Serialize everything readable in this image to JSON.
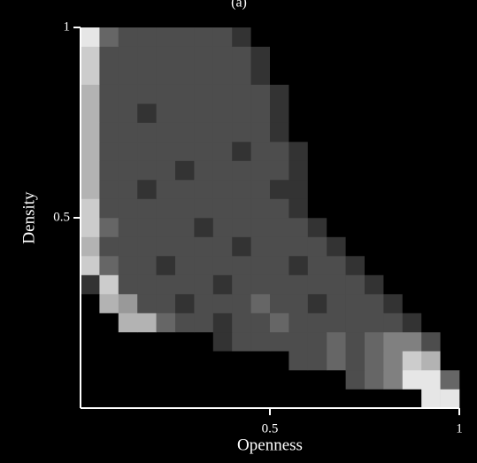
{
  "chart_data": {
    "type": "heatmap",
    "title": "(a)",
    "xlabel": "Openness",
    "ylabel": "Density",
    "xlim": [
      0,
      1
    ],
    "ylim": [
      0,
      1
    ],
    "xticks": [
      0.5,
      1
    ],
    "yticks": [
      0.5,
      1
    ],
    "xbins": [
      0,
      0.05,
      0.1,
      0.15,
      0.2,
      0.25,
      0.3,
      0.35,
      0.4,
      0.45,
      0.5,
      0.55,
      0.6,
      0.65,
      0.7,
      0.75,
      0.8,
      0.85,
      0.9,
      0.95,
      1
    ],
    "ybins": [
      0,
      0.05,
      0.1,
      0.15,
      0.2,
      0.25,
      0.3,
      0.35,
      0.4,
      0.45,
      0.5,
      0.55,
      0.6,
      0.65,
      0.7,
      0.75,
      0.8,
      0.85,
      0.9,
      0.95,
      1
    ],
    "values": [
      [
        0,
        0,
        0,
        0,
        0,
        0,
        0,
        0,
        0,
        0,
        0,
        0,
        0,
        0,
        0,
        0,
        0,
        0,
        0.9,
        0.9
      ],
      [
        0,
        0,
        0,
        0,
        0,
        0,
        0,
        0,
        0,
        0,
        0,
        0,
        0,
        0,
        0.3,
        0.4,
        0.5,
        0.9,
        0.9,
        0.4
      ],
      [
        0,
        0,
        0,
        0,
        0,
        0,
        0,
        0,
        0,
        0,
        0,
        0.3,
        0.3,
        0.4,
        0.3,
        0.4,
        0.5,
        0.8,
        0.7,
        0
      ],
      [
        0,
        0,
        0,
        0,
        0,
        0,
        0,
        0.2,
        0.3,
        0.3,
        0.3,
        0.3,
        0.3,
        0.4,
        0.3,
        0.4,
        0.5,
        0.5,
        0.3,
        0
      ],
      [
        0,
        0,
        0.7,
        0.7,
        0.4,
        0.3,
        0.3,
        0.2,
        0.3,
        0.3,
        0.4,
        0.3,
        0.3,
        0.3,
        0.3,
        0.3,
        0.3,
        0.2,
        0,
        0
      ],
      [
        0,
        0.7,
        0.6,
        0.3,
        0.3,
        0.2,
        0.3,
        0.3,
        0.3,
        0.4,
        0.3,
        0.3,
        0.2,
        0.3,
        0.3,
        0.3,
        0.2,
        0,
        0,
        0
      ],
      [
        0.2,
        0.8,
        0.3,
        0.3,
        0.3,
        0.3,
        0.3,
        0.2,
        0.3,
        0.3,
        0.3,
        0.3,
        0.3,
        0.3,
        0.3,
        0.2,
        0,
        0,
        0,
        0
      ],
      [
        0.8,
        0.4,
        0.3,
        0.3,
        0.2,
        0.3,
        0.3,
        0.3,
        0.3,
        0.3,
        0.3,
        0.2,
        0.3,
        0.3,
        0.2,
        0,
        0,
        0,
        0,
        0
      ],
      [
        0.7,
        0.3,
        0.3,
        0.3,
        0.3,
        0.3,
        0.3,
        0.3,
        0.2,
        0.3,
        0.3,
        0.3,
        0.3,
        0.2,
        0,
        0,
        0,
        0,
        0,
        0
      ],
      [
        0.8,
        0.4,
        0.3,
        0.3,
        0.3,
        0.3,
        0.2,
        0.3,
        0.3,
        0.3,
        0.3,
        0.3,
        0.2,
        0,
        0,
        0,
        0,
        0,
        0,
        0
      ],
      [
        0.8,
        0.3,
        0.3,
        0.3,
        0.3,
        0.3,
        0.3,
        0.3,
        0.3,
        0.3,
        0.3,
        0.2,
        0,
        0,
        0,
        0,
        0,
        0,
        0,
        0
      ],
      [
        0.7,
        0.3,
        0.3,
        0.2,
        0.3,
        0.3,
        0.3,
        0.3,
        0.3,
        0.3,
        0.2,
        0.2,
        0,
        0,
        0,
        0,
        0,
        0,
        0,
        0
      ],
      [
        0.7,
        0.3,
        0.3,
        0.3,
        0.3,
        0.2,
        0.3,
        0.3,
        0.3,
        0.3,
        0.3,
        0.2,
        0,
        0,
        0,
        0,
        0,
        0,
        0,
        0
      ],
      [
        0.7,
        0.3,
        0.3,
        0.3,
        0.3,
        0.3,
        0.3,
        0.3,
        0.2,
        0.3,
        0.3,
        0.2,
        0,
        0,
        0,
        0,
        0,
        0,
        0,
        0
      ],
      [
        0.7,
        0.3,
        0.3,
        0.3,
        0.3,
        0.3,
        0.3,
        0.3,
        0.3,
        0.3,
        0.2,
        0,
        0,
        0,
        0,
        0,
        0,
        0,
        0,
        0
      ],
      [
        0.7,
        0.3,
        0.3,
        0.2,
        0.3,
        0.3,
        0.3,
        0.3,
        0.3,
        0.3,
        0.2,
        0,
        0,
        0,
        0,
        0,
        0,
        0,
        0,
        0
      ],
      [
        0.7,
        0.3,
        0.3,
        0.3,
        0.3,
        0.3,
        0.3,
        0.3,
        0.3,
        0.3,
        0.2,
        0,
        0,
        0,
        0,
        0,
        0,
        0,
        0,
        0
      ],
      [
        0.8,
        0.3,
        0.3,
        0.3,
        0.3,
        0.3,
        0.3,
        0.3,
        0.3,
        0.2,
        0,
        0,
        0,
        0,
        0,
        0,
        0,
        0,
        0,
        0
      ],
      [
        0.8,
        0.3,
        0.3,
        0.3,
        0.3,
        0.3,
        0.3,
        0.3,
        0.3,
        0.2,
        0,
        0,
        0,
        0,
        0,
        0,
        0,
        0,
        0,
        0
      ],
      [
        0.9,
        0.4,
        0.3,
        0.3,
        0.3,
        0.3,
        0.3,
        0.3,
        0.2,
        0,
        0,
        0,
        0,
        0,
        0,
        0,
        0,
        0,
        0,
        0
      ]
    ]
  }
}
